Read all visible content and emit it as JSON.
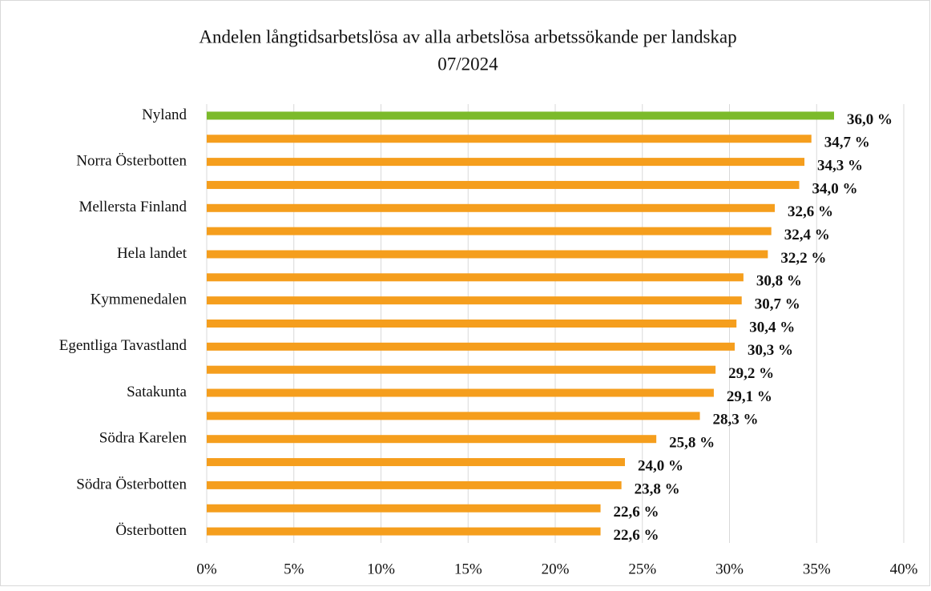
{
  "chart_data": {
    "type": "hbar",
    "title": "Andelen långtidsarbetslösa av alla arbetslösa arbetssökande per landskap",
    "subtitle": "07/2024",
    "categories": [
      "Nyland",
      null,
      "Norra Österbotten",
      null,
      "Mellersta Finland",
      null,
      "Hela landet",
      null,
      "Kymmenedalen",
      null,
      "Egentliga Tavastland",
      null,
      "Satakunta",
      null,
      "Södra Karelen",
      null,
      "Södra Österbotten",
      null,
      "Österbotten"
    ],
    "values": [
      36.0,
      34.7,
      34.3,
      34.0,
      32.6,
      32.4,
      32.2,
      30.8,
      30.7,
      30.4,
      30.3,
      29.2,
      29.1,
      28.3,
      25.8,
      24.0,
      23.8,
      22.6,
      22.6
    ],
    "value_labels": [
      "36,0 %",
      "34,7 %",
      "34,3 %",
      "34,0 %",
      "32,6 %",
      "32,4 %",
      "32,2 %",
      "30,8 %",
      "30,7 %",
      "30,4 %",
      "30,3 %",
      "29,2 %",
      "29,1 %",
      "28,3 %",
      "25,8 %",
      "24,0 %",
      "23,8 %",
      "22,6 %",
      "22,6 %"
    ],
    "colors": [
      "#7cba2b",
      "#f59e1d",
      "#f59e1d",
      "#f59e1d",
      "#f59e1d",
      "#f59e1d",
      "#f59e1d",
      "#f59e1d",
      "#f59e1d",
      "#f59e1d",
      "#f59e1d",
      "#f59e1d",
      "#f59e1d",
      "#f59e1d",
      "#f59e1d",
      "#f59e1d",
      "#f59e1d",
      "#f59e1d",
      "#f59e1d"
    ],
    "xlim": [
      0,
      40
    ],
    "xticks": [
      {
        "value": 0,
        "label": "0%"
      },
      {
        "value": 5,
        "label": "5%"
      },
      {
        "value": 10,
        "label": "10%"
      },
      {
        "value": 15,
        "label": "15%"
      },
      {
        "value": 20,
        "label": "20%"
      },
      {
        "value": 25,
        "label": "25%"
      },
      {
        "value": 30,
        "label": "30%"
      },
      {
        "value": 35,
        "label": "35%"
      },
      {
        "value": 40,
        "label": "40%"
      }
    ],
    "grid": true
  }
}
